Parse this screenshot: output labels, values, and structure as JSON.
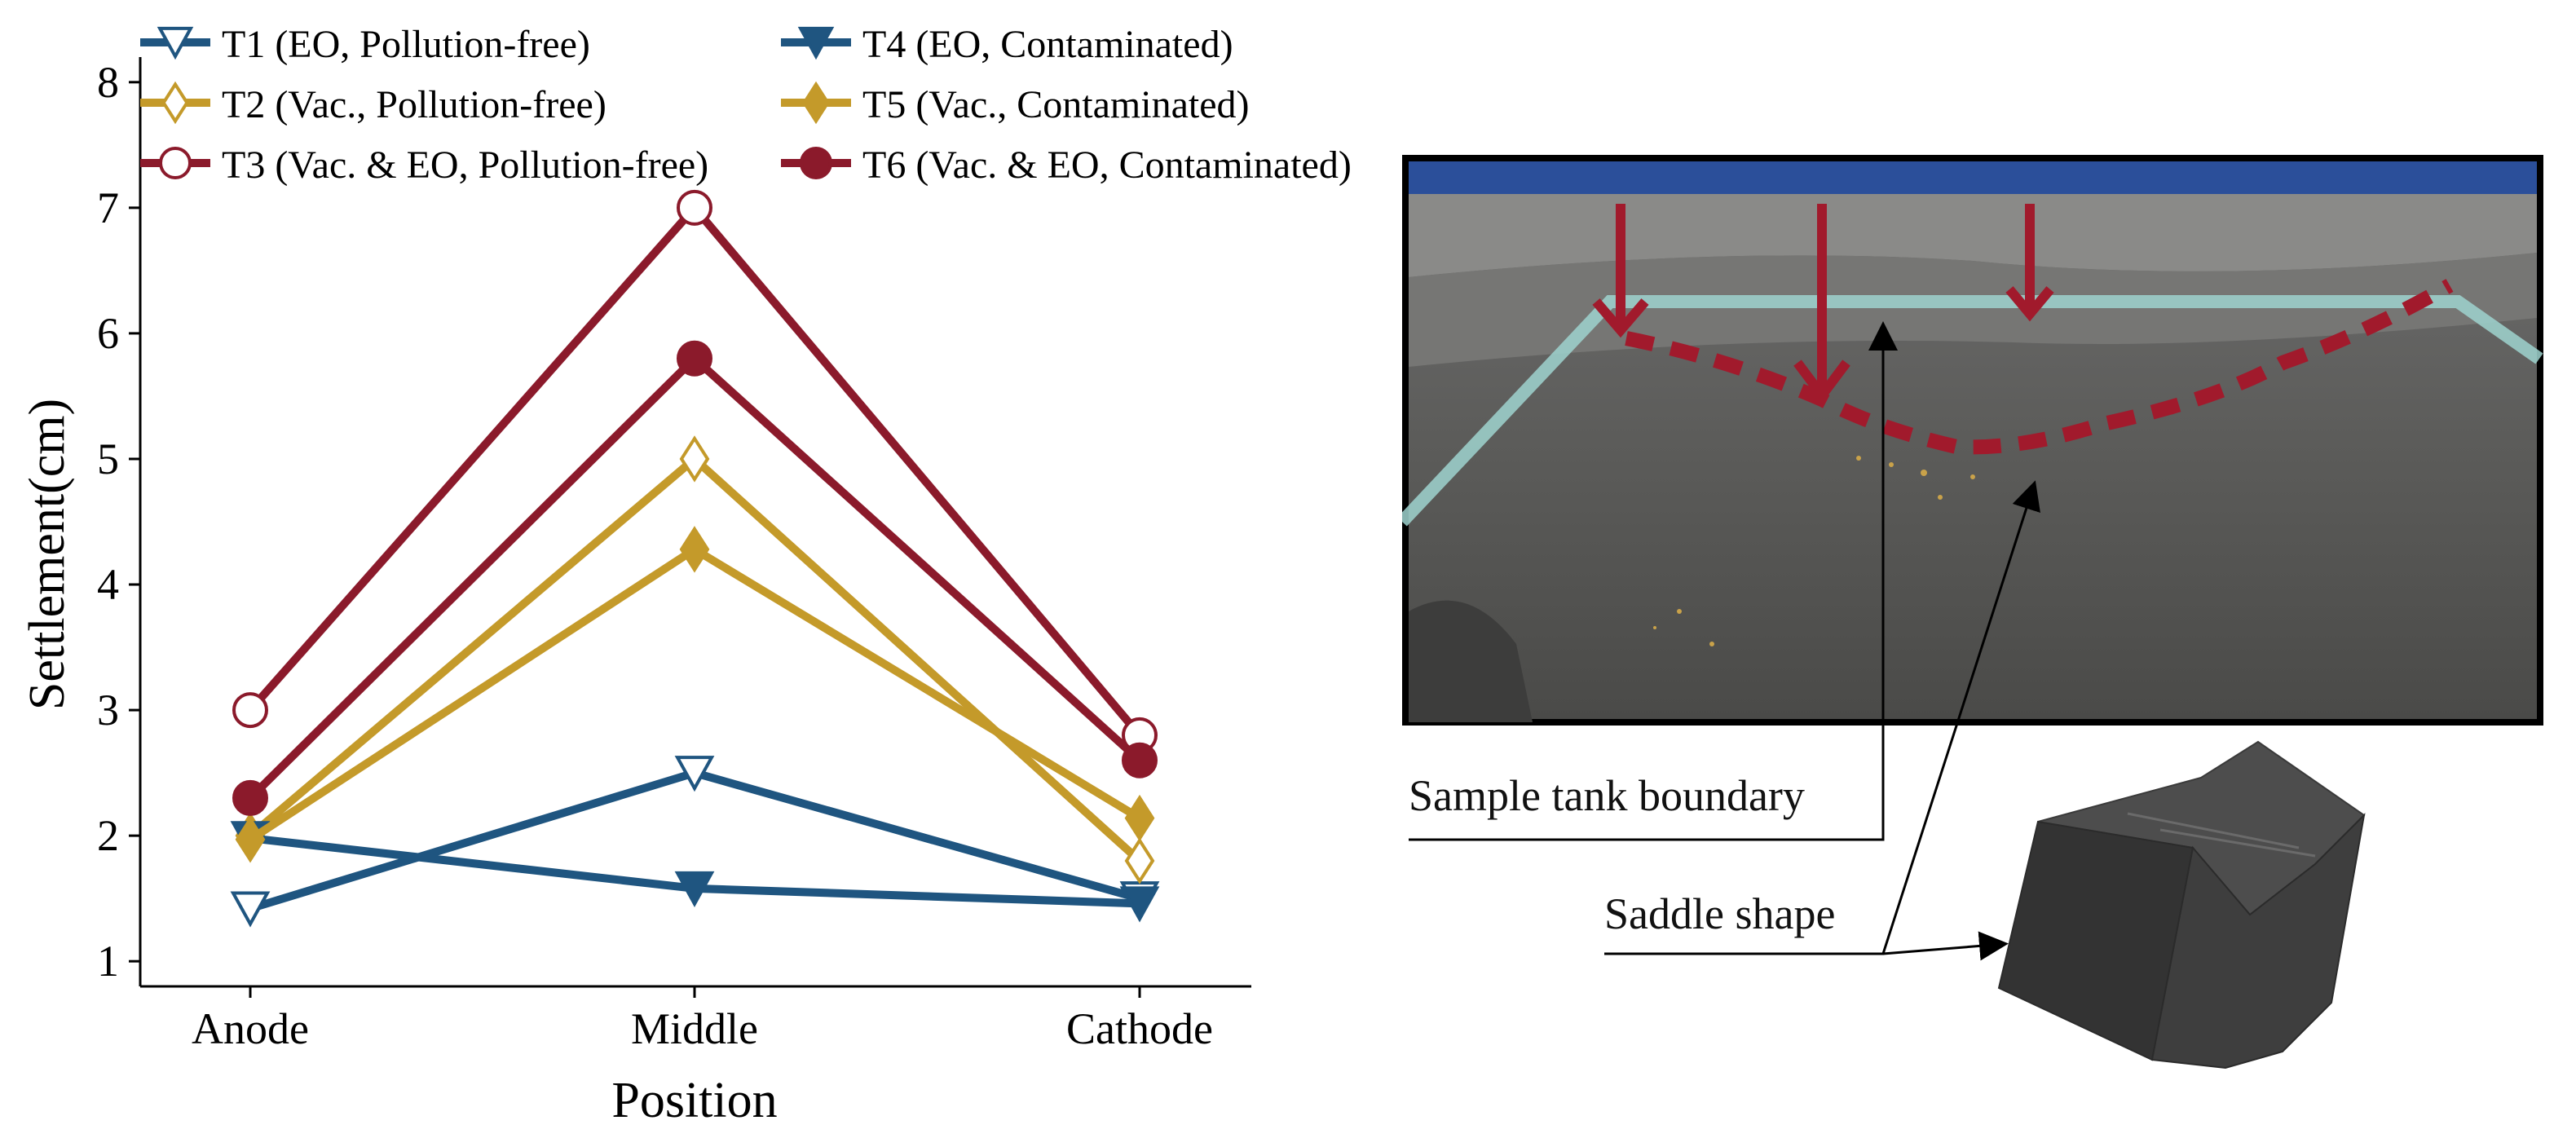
{
  "chart_data": {
    "type": "line",
    "categories": [
      "Anode",
      "Middle",
      "Cathode"
    ],
    "xlabel": "Position",
    "ylabel": "Settlement(cm)",
    "ylim": [
      0.8,
      8.2
    ],
    "yticks": [
      1,
      2,
      3,
      4,
      5,
      6,
      7,
      8
    ],
    "grid": false,
    "legend_position": "top",
    "series": [
      {
        "name": "T1 (EO, Pollution-free)",
        "values": [
          1.42,
          2.5,
          1.5
        ],
        "color": "#1f5580",
        "marker": "triangle-down",
        "filled": false
      },
      {
        "name": "T2 (Vac., Pollution-free)",
        "values": [
          2.0,
          5.0,
          1.8
        ],
        "color": "#c49a2a",
        "marker": "diamond",
        "filled": false
      },
      {
        "name": "T3 (Vac. & EO, Pollution-free)",
        "values": [
          3.0,
          7.0,
          2.8
        ],
        "color": "#8b1a2b",
        "marker": "circle",
        "filled": false
      },
      {
        "name": "T4 (EO, Contaminated)",
        "values": [
          1.98,
          1.58,
          1.46
        ],
        "color": "#1f5580",
        "marker": "triangle-down",
        "filled": true
      },
      {
        "name": "T5 (Vac., Contaminated)",
        "values": [
          1.97,
          4.28,
          2.14
        ],
        "color": "#c49a2a",
        "marker": "diamond",
        "filled": true
      },
      {
        "name": "T6 (Vac. & EO, Contaminated)",
        "values": [
          2.3,
          5.8,
          2.6
        ],
        "color": "#8b1a2b",
        "marker": "circle",
        "filled": true
      }
    ]
  },
  "annotations": {
    "tank_boundary": "Sample tank boundary",
    "saddle_shape": "Saddle shape"
  }
}
